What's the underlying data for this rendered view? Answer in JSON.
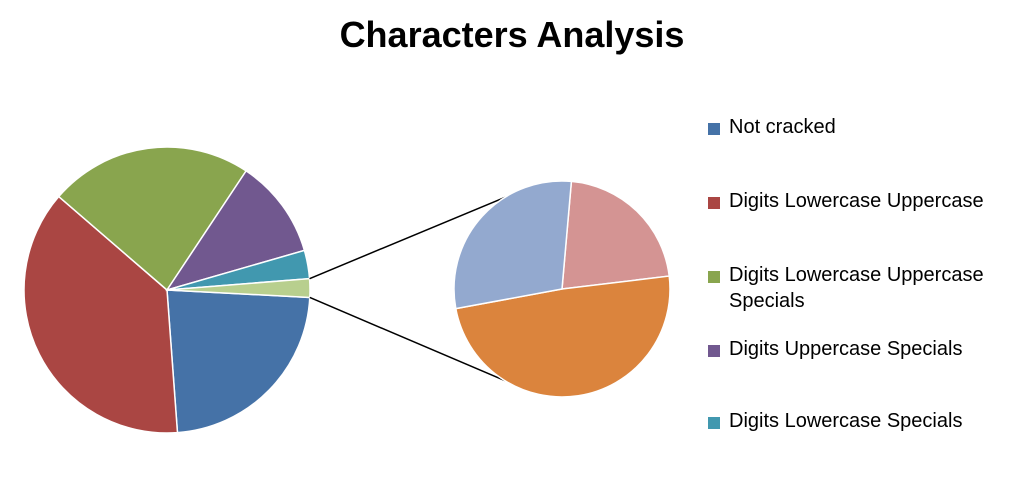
{
  "chart_data": {
    "type": "pie",
    "subtype": "pie-of-pie",
    "title": "Characters Analysis",
    "main_pie": {
      "slices": [
        {
          "label": "Not cracked",
          "value": 23.0,
          "color": "#4572A7"
        },
        {
          "label": "Digits Lowercase Uppercase",
          "value": 37.5,
          "color": "#AA4643"
        },
        {
          "label": "Digits Lowercase Uppercase Specials",
          "value": 23.0,
          "color": "#89A54E"
        },
        {
          "label": "Digits Uppercase Specials",
          "value": 11.2,
          "color": "#71588F"
        },
        {
          "label": "Digits Lowercase Specials",
          "value": 3.2,
          "color": "#4198AF"
        },
        {
          "label": "",
          "value": 2.1,
          "color": "#B8CF8E"
        }
      ]
    },
    "secondary_pie": {
      "slices": [
        {
          "label": "",
          "value": 21.7,
          "color": "#D49493"
        },
        {
          "label": "",
          "value": 49.0,
          "color": "#DB843D"
        },
        {
          "label": "",
          "value": 29.3,
          "color": "#93A9CF"
        }
      ]
    },
    "legend": {
      "position": "right",
      "entries": [
        {
          "label": "Not cracked",
          "color": "#4572A7"
        },
        {
          "label": "Digits Lowercase Uppercase",
          "color": "#AA4643"
        },
        {
          "label": "Digits Lowercase Uppercase Specials",
          "color": "#89A54E"
        },
        {
          "label": "Digits Uppercase Specials",
          "color": "#71588F"
        },
        {
          "label": "Digits Lowercase Specials",
          "color": "#4198AF"
        }
      ]
    }
  }
}
